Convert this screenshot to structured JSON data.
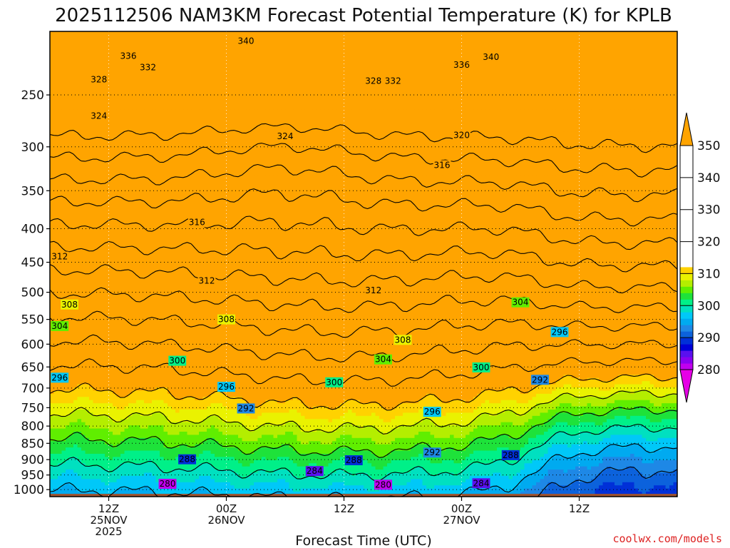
{
  "chart_data": {
    "type": "heatmap",
    "title": "2025112506 NAM3KM Forecast Potential Temperature (K) for KPLB",
    "xlabel": "Forecast Time (UTC)",
    "ylabel": "",
    "y_scale": "log",
    "y_inverted": true,
    "y_range_hPa": [
      1025,
      200
    ],
    "y_ticks": [
      250,
      300,
      350,
      400,
      450,
      500,
      550,
      600,
      650,
      700,
      750,
      800,
      850,
      900,
      950,
      1000
    ],
    "x_range": [
      "2025-11-25T06",
      "2025-11-27T22"
    ],
    "x_ticks": [
      {
        "time": "2025-11-25T12",
        "lines": [
          "12Z",
          "25NOV",
          "2025"
        ]
      },
      {
        "time": "2025-11-26T00",
        "lines": [
          "00Z",
          "26NOV"
        ]
      },
      {
        "time": "2025-11-26T12",
        "lines": [
          "12Z"
        ]
      },
      {
        "time": "2025-11-27T00",
        "lines": [
          "00Z",
          "27NOV"
        ]
      },
      {
        "time": "2025-11-27T12",
        "lines": [
          "12Z"
        ]
      }
    ],
    "grid": true,
    "contour_interval_K": 4,
    "fill_interval_K": 2,
    "colorbar": {
      "ticks": [
        280,
        290,
        300,
        310,
        320,
        330,
        340,
        350
      ],
      "extend": "both",
      "colors": [
        "#e600e6",
        "#c000ee",
        "#8a00f0",
        "#5a10ef",
        "#0000d8",
        "#0030d8",
        "#0c62dc",
        "#1e88e6",
        "#00aaf0",
        "#00c8f8",
        "#00e0c0",
        "#00f088",
        "#1ee23a",
        "#60ee00",
        "#b4ee00",
        "#eaf200",
        "#ffd200",
        "#ffa400"
      ]
    },
    "ground_color": "#a0522d",
    "contour_labels": [
      {
        "value": 340,
        "time": "2025-11-26T02",
        "hPa": 207
      },
      {
        "value": 340,
        "time": "2025-11-27T03",
        "hPa": 219
      },
      {
        "value": 336,
        "time": "2025-11-25T14",
        "hPa": 218
      },
      {
        "value": 336,
        "time": "2025-11-27T00",
        "hPa": 225
      },
      {
        "value": 332,
        "time": "2025-11-25T16",
        "hPa": 227
      },
      {
        "value": 332,
        "time": "2025-11-26T17",
        "hPa": 238
      },
      {
        "value": 328,
        "time": "2025-11-25T11",
        "hPa": 237
      },
      {
        "value": 328,
        "time": "2025-11-26T15",
        "hPa": 238
      },
      {
        "value": 324,
        "time": "2025-11-25T11",
        "hPa": 269
      },
      {
        "value": 324,
        "time": "2025-11-26T06",
        "hPa": 289
      },
      {
        "value": 320,
        "time": "2025-11-27T00",
        "hPa": 288
      },
      {
        "value": 316,
        "time": "2025-11-26T22",
        "hPa": 320
      },
      {
        "value": 316,
        "time": "2025-11-25T21",
        "hPa": 391
      },
      {
        "value": 312,
        "time": "2025-11-25T07",
        "hPa": 441
      },
      {
        "value": 312,
        "time": "2025-11-25T22",
        "hPa": 480
      },
      {
        "value": 312,
        "time": "2025-11-26T15",
        "hPa": 497
      },
      {
        "value": 308,
        "time": "2025-11-25T08",
        "hPa": 522
      },
      {
        "value": 308,
        "time": "2025-11-26T00",
        "hPa": 550
      },
      {
        "value": 308,
        "time": "2025-11-26T18",
        "hPa": 591
      },
      {
        "value": 304,
        "time": "2025-11-25T07",
        "hPa": 563
      },
      {
        "value": 304,
        "time": "2025-11-26T16",
        "hPa": 633
      },
      {
        "value": 304,
        "time": "2025-11-27T06",
        "hPa": 518
      },
      {
        "value": 300,
        "time": "2025-11-25T19",
        "hPa": 636
      },
      {
        "value": 300,
        "time": "2025-11-26T11",
        "hPa": 686
      },
      {
        "value": 300,
        "time": "2025-11-27T02",
        "hPa": 651
      },
      {
        "value": 296,
        "time": "2025-11-25T07",
        "hPa": 675
      },
      {
        "value": 296,
        "time": "2025-11-26T00",
        "hPa": 697
      },
      {
        "value": 296,
        "time": "2025-11-26T21",
        "hPa": 761
      },
      {
        "value": 296,
        "time": "2025-11-27T10",
        "hPa": 575
      },
      {
        "value": 292,
        "time": "2025-11-26T02",
        "hPa": 752
      },
      {
        "value": 292,
        "time": "2025-11-26T21",
        "hPa": 878
      },
      {
        "value": 292,
        "time": "2025-11-27T08",
        "hPa": 680
      },
      {
        "value": 288,
        "time": "2025-11-25T20",
        "hPa": 899
      },
      {
        "value": 288,
        "time": "2025-11-26T13",
        "hPa": 902
      },
      {
        "value": 288,
        "time": "2025-11-27T05",
        "hPa": 886
      },
      {
        "value": 284,
        "time": "2025-11-26T09",
        "hPa": 937
      },
      {
        "value": 284,
        "time": "2025-11-27T02",
        "hPa": 978
      },
      {
        "value": 280,
        "time": "2025-11-25T18",
        "hPa": 980
      },
      {
        "value": 280,
        "time": "2025-11-26T16",
        "hPa": 983
      }
    ]
  },
  "credit": "coolwx.com/models"
}
